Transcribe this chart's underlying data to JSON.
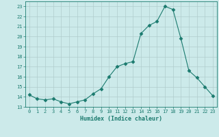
{
  "xlabel": "Humidex (Indice chaleur)",
  "x": [
    0,
    1,
    2,
    3,
    4,
    5,
    6,
    7,
    8,
    9,
    10,
    11,
    12,
    13,
    14,
    15,
    16,
    17,
    18,
    19,
    20,
    21,
    22,
    23
  ],
  "y": [
    14.2,
    13.8,
    13.7,
    13.8,
    13.5,
    13.3,
    13.5,
    13.7,
    14.3,
    14.8,
    16.0,
    17.0,
    17.3,
    17.5,
    20.3,
    21.1,
    21.5,
    23.0,
    22.7,
    19.8,
    16.6,
    15.9,
    15.0,
    14.1
  ],
  "ylim": [
    13,
    23.5
  ],
  "yticks": [
    13,
    14,
    15,
    16,
    17,
    18,
    19,
    20,
    21,
    22,
    23
  ],
  "line_color": "#1a7a6e",
  "marker": "D",
  "marker_size": 2.5,
  "bg_color": "#cceaea",
  "grid_color": "#b0cccc",
  "tick_color": "#1a7a6e",
  "label_color": "#1a7a6e",
  "font_size_tick": 5.0,
  "font_size_xlabel": 6.0
}
